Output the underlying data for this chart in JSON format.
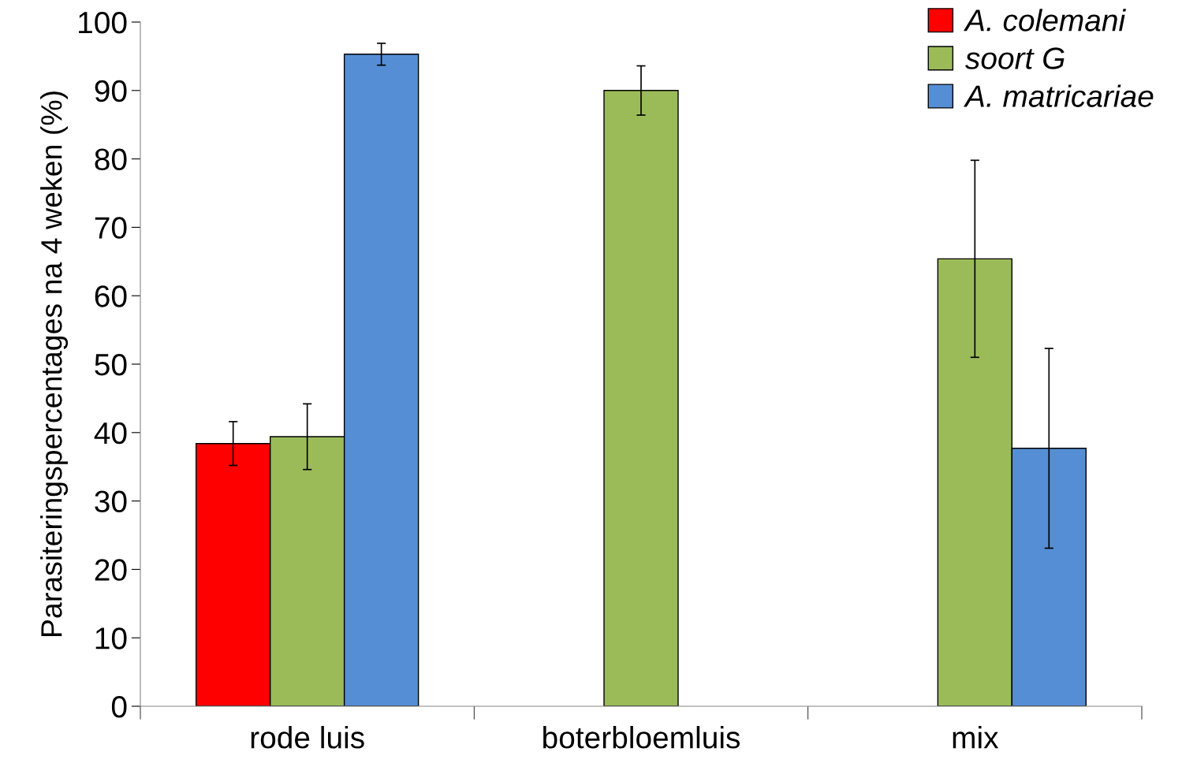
{
  "chart_data": {
    "type": "bar",
    "ylabel": "Parasiteringspercentages na 4 weken (%)",
    "categories": [
      "rode luis",
      "boterbloemluis",
      "mix"
    ],
    "series": [
      {
        "name": "A. colemani",
        "color": "#ff0000",
        "values": [
          38.4,
          null,
          null
        ],
        "errors": [
          3.2,
          null,
          null
        ]
      },
      {
        "name": "soort G",
        "color": "#9bbb59",
        "values": [
          39.4,
          90.0,
          65.4
        ],
        "errors": [
          4.8,
          3.6,
          14.4
        ]
      },
      {
        "name": "A. matricariae",
        "color": "#558ed5",
        "values": [
          95.3,
          null,
          37.7
        ],
        "errors": [
          1.6,
          null,
          14.6
        ]
      }
    ],
    "ylim": [
      0,
      100
    ],
    "yticks": [
      0,
      10,
      20,
      30,
      40,
      50,
      60,
      70,
      80,
      90,
      100
    ],
    "grid": false,
    "legend": "top right"
  }
}
